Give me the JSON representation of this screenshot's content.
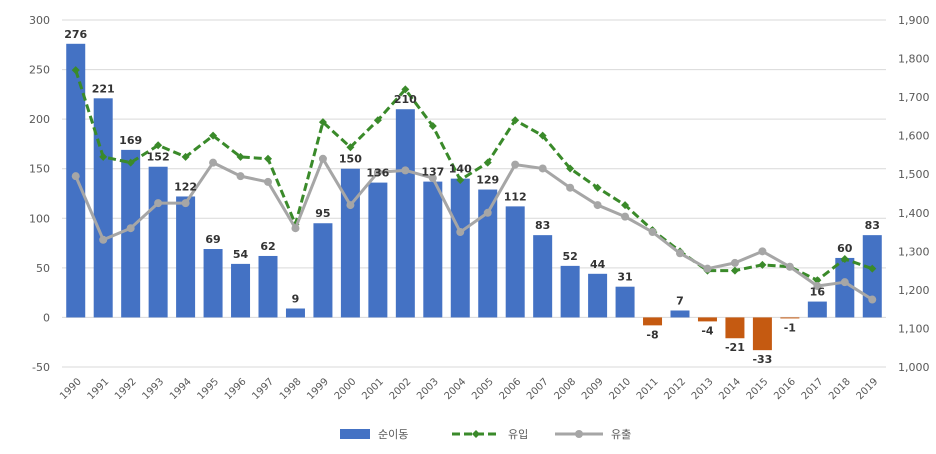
{
  "chart_data": {
    "type": "bar",
    "title": "",
    "categories": [
      "1990",
      "1991",
      "1992",
      "1993",
      "1994",
      "1995",
      "1996",
      "1997",
      "1998",
      "1999",
      "2000",
      "2001",
      "2002",
      "2003",
      "2004",
      "2005",
      "2006",
      "2007",
      "2008",
      "2009",
      "2010",
      "2011",
      "2012",
      "2013",
      "2014",
      "2015",
      "2016",
      "2017",
      "2018",
      "2019"
    ],
    "y_left": {
      "range": [
        -50,
        300
      ],
      "ticks": [
        "-50",
        "0",
        "50",
        "100",
        "150",
        "200",
        "250",
        "300"
      ]
    },
    "y_right": {
      "range": [
        1000,
        1900
      ],
      "ticks": [
        "1,000",
        "1,100",
        "1,200",
        "1,300",
        "1,400",
        "1,500",
        "1,600",
        "1,700",
        "1,800",
        "1,900"
      ]
    },
    "grid": true,
    "legend_position": "bottom",
    "series": [
      {
        "name": "순이동",
        "type": "bar",
        "axis": "left",
        "values": [
          276,
          221,
          169,
          152,
          122,
          69,
          54,
          62,
          9,
          95,
          150,
          136,
          210,
          137,
          140,
          129,
          112,
          83,
          52,
          44,
          31,
          -8,
          7,
          -4,
          -21,
          -33,
          -1,
          16,
          60,
          83
        ],
        "labels": [
          "276",
          "221",
          "169",
          "152",
          "122",
          "69",
          "54",
          "62",
          "9",
          "95",
          "150",
          "136",
          "210",
          "137",
          "140",
          "129",
          "112",
          "83",
          "52",
          "44",
          "31",
          "-8",
          "7",
          "-4",
          "-21",
          "-33",
          "-1",
          "16",
          "60",
          "83"
        ]
      },
      {
        "name": "유입",
        "type": "line",
        "axis": "right",
        "values": [
          1770,
          1545,
          1530,
          1575,
          1545,
          1600,
          1545,
          1540,
          1370,
          1635,
          1570,
          1640,
          1720,
          1625,
          1485,
          1530,
          1640,
          1600,
          1515,
          1465,
          1420,
          1355,
          1300,
          1250,
          1250,
          1265,
          1260,
          1225,
          1280,
          1255
        ]
      },
      {
        "name": "유출",
        "type": "line",
        "axis": "right",
        "values": [
          1495,
          1330,
          1360,
          1425,
          1425,
          1530,
          1495,
          1480,
          1360,
          1540,
          1420,
          1505,
          1510,
          1490,
          1350,
          1400,
          1525,
          1515,
          1465,
          1420,
          1390,
          1350,
          1295,
          1255,
          1270,
          1300,
          1260,
          1210,
          1220,
          1175
        ]
      }
    ],
    "colors": {
      "bar_positive": "#4472C4",
      "bar_negative": "#C55A11",
      "line_inflow": "#3A8A2A",
      "line_outflow": "#A6A6A6",
      "grid": "#D9D9D9",
      "text": "#595959"
    }
  }
}
